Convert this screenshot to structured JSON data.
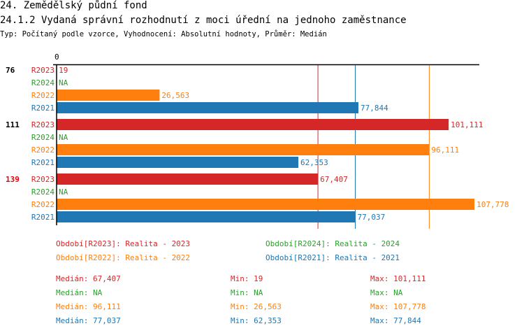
{
  "header": {
    "title": "24. Zemědělský půdní fond",
    "subtitle": "24.1.2 Vydaná správní rozhodnutí z moci úřední na jednoho zaměstnance",
    "info": "Typ: Počítaný podle vzorce, Vyhodnocení: Absolutní hodnoty, Průměr: Medián"
  },
  "chart_data": {
    "type": "bar",
    "orientation": "horizontal",
    "x_tick_labels": [
      "0"
    ],
    "xlim": [
      0,
      110000
    ],
    "colors": {
      "R2023": "#d62728",
      "R2024": "#2ca02c",
      "R2022": "#ff7f0e",
      "R2021": "#1f77b4"
    },
    "groups": [
      {
        "label": "76",
        "label_color": "#000000",
        "bars": [
          {
            "series": "R2023",
            "value": 19,
            "label": "19"
          },
          {
            "series": "R2024",
            "value": null,
            "label": "NA"
          },
          {
            "series": "R2022",
            "value": 26563,
            "label": "26,563"
          },
          {
            "series": "R2021",
            "value": 77844,
            "label": "77,844"
          }
        ]
      },
      {
        "label": "111",
        "label_color": "#000000",
        "bars": [
          {
            "series": "R2023",
            "value": 101111,
            "label": "101,111"
          },
          {
            "series": "R2024",
            "value": null,
            "label": "NA"
          },
          {
            "series": "R2022",
            "value": 96111,
            "label": "96,111"
          },
          {
            "series": "R2021",
            "value": 62353,
            "label": "62,353"
          }
        ]
      },
      {
        "label": "139",
        "label_color": "#e8000b",
        "bars": [
          {
            "series": "R2023",
            "value": 67407,
            "label": "67,407"
          },
          {
            "series": "R2024",
            "value": null,
            "label": "NA"
          },
          {
            "series": "R2022",
            "value": 107778,
            "label": "107,778"
          },
          {
            "series": "R2021",
            "value": 77037,
            "label": "77,037"
          }
        ]
      }
    ],
    "median_lines": [
      {
        "series": "R2023",
        "value": 67407
      },
      {
        "series": "R2021",
        "value": 77037
      },
      {
        "series": "R2022",
        "value": 96111
      }
    ],
    "legend": [
      {
        "series": "R2023",
        "text": "Období[R2023]: Realita - 2023"
      },
      {
        "series": "R2024",
        "text": "Období[R2024]: Realita - 2024"
      },
      {
        "series": "R2022",
        "text": "Období[R2022]: Realita - 2022"
      },
      {
        "series": "R2021",
        "text": "Období[R2021]: Realita - 2021"
      }
    ],
    "stats": [
      {
        "series": "R2023",
        "median": "Medián: 67,407",
        "min": "Min: 19",
        "max": "Max: 101,111"
      },
      {
        "series": "R2024",
        "median": "Medián: NA",
        "min": "Min: NA",
        "max": "Max: NA"
      },
      {
        "series": "R2022",
        "median": "Medián: 96,111",
        "min": "Min: 26,563",
        "max": "Max: 107,778"
      },
      {
        "series": "R2021",
        "median": "Medián: 77,037",
        "min": "Min: 62,353",
        "max": "Max: 77,844"
      }
    ]
  }
}
